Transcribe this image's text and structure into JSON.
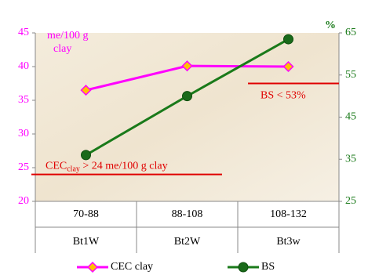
{
  "chart_data": {
    "type": "line",
    "y_axis_label": [
      "me/100 g",
      "clay"
    ],
    "y2_axis_label": "%",
    "categories": [
      "70-88",
      "88-108",
      "108-132"
    ],
    "category_groups": [
      "Bt1W",
      "Bt2W",
      "Bt3w"
    ],
    "series": [
      {
        "name": "CEC clay",
        "color": "#ff00ff",
        "marker_color": "#ffc000",
        "marker": "diamond",
        "values": [
          36.5,
          40.1,
          40.0
        ]
      },
      {
        "name": "BS",
        "color": "#1a7a1a",
        "marker_color": "#1a6a1a",
        "marker": "circle",
        "axis": "y2",
        "values": [
          36,
          50,
          63.5
        ]
      }
    ],
    "ylim": [
      20,
      45
    ],
    "yticks": [
      20,
      25,
      30,
      35,
      40,
      45
    ],
    "y2lim": [
      25,
      65
    ],
    "y2ticks": [
      25,
      35,
      45,
      55,
      65
    ],
    "annotations": [
      {
        "text": "BS < 53%",
        "color": "#e00000",
        "axis": "y2",
        "value": 53
      },
      {
        "text": [
          "CEC",
          "clay",
          " > 24 me/100 g clay"
        ],
        "color": "#e00000",
        "axis": "y",
        "value": 24
      }
    ],
    "legend": "bottom"
  }
}
